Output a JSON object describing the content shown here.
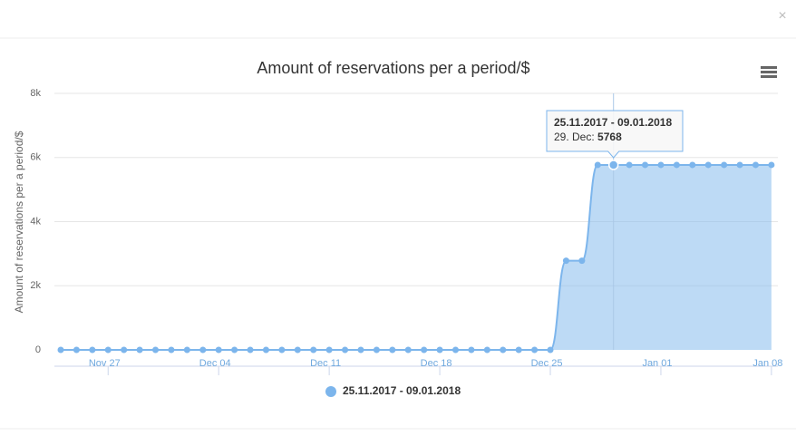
{
  "chart_data": {
    "type": "areaspline",
    "title": "Amount of reservations per a period/$",
    "y_axis_title": "Amount of reservations per a period/$",
    "x": [
      "Nov 24",
      "Nov 25",
      "Nov 26",
      "Nov 27",
      "Nov 28",
      "Nov 29",
      "Nov 30",
      "Dec 01",
      "Dec 02",
      "Dec 03",
      "Dec 04",
      "Dec 05",
      "Dec 06",
      "Dec 07",
      "Dec 08",
      "Dec 09",
      "Dec 10",
      "Dec 11",
      "Dec 12",
      "Dec 13",
      "Dec 14",
      "Dec 15",
      "Dec 16",
      "Dec 17",
      "Dec 18",
      "Dec 19",
      "Dec 20",
      "Dec 21",
      "Dec 22",
      "Dec 23",
      "Dec 24",
      "Dec 25",
      "Dec 26",
      "Dec 27",
      "Dec 28",
      "Dec 29",
      "Dec 30",
      "Dec 31",
      "Jan 01",
      "Jan 02",
      "Jan 03",
      "Jan 04",
      "Jan 05",
      "Jan 06",
      "Jan 07",
      "Jan 08"
    ],
    "xticks": [
      "Nov 27",
      "Dec 04",
      "Dec 11",
      "Dec 18",
      "Dec 25",
      "Jan 01",
      "Jan 08"
    ],
    "series": [
      {
        "name": "25.11.2017 - 09.01.2018",
        "color": "#7cb5ec",
        "values": [
          0,
          0,
          0,
          0,
          0,
          0,
          0,
          0,
          0,
          0,
          0,
          0,
          0,
          0,
          0,
          0,
          0,
          0,
          0,
          0,
          0,
          0,
          0,
          0,
          0,
          0,
          0,
          0,
          0,
          0,
          0,
          0,
          2780,
          2780,
          5768,
          5768,
          5768,
          5768,
          5768,
          5768,
          5768,
          5768,
          5768,
          5768,
          5768,
          5768
        ]
      }
    ],
    "ylim": [
      0,
      8000
    ],
    "yticks": [
      {
        "value": 0,
        "label": "0"
      },
      {
        "value": 2000,
        "label": "2k"
      },
      {
        "value": 4000,
        "label": "4k"
      },
      {
        "value": 6000,
        "label": "6k"
      },
      {
        "value": 8000,
        "label": "8k"
      }
    ],
    "grid": true,
    "legend": "bottom",
    "tooltip": {
      "index": 35,
      "header": "25.11.2017 - 09.01.2018",
      "label": "29. Dec:",
      "value": 5768
    }
  }
}
